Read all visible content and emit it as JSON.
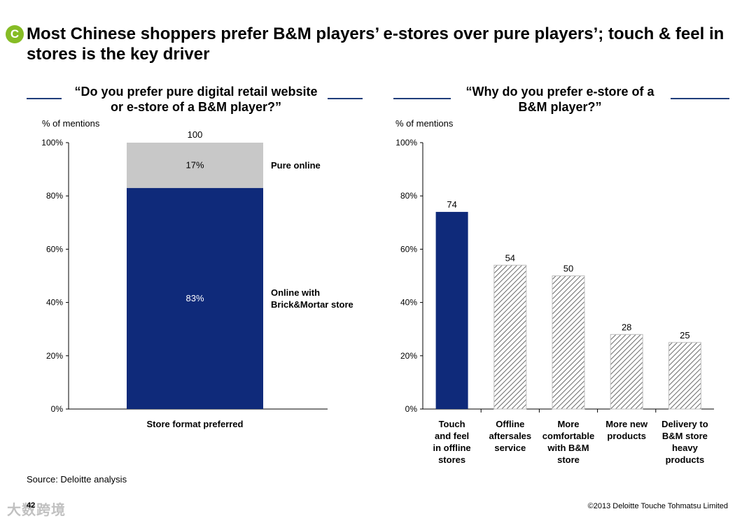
{
  "badge": "C",
  "title": "Most Chinese shoppers prefer B&M players’ e-stores over pure players’; touch & feel in stores is the key driver",
  "left_question": "“Do you prefer pure digital retail website or e-store of a B&M player?”",
  "right_question": "“Why do you prefer e-store of a B&M player?”",
  "unit_label": "% of mentions",
  "source": "Source: Deloitte analysis",
  "page_number": "42",
  "watermark": "大数跨境",
  "copyright": "©2013 Deloitte Touche Tohmatsu Limited",
  "colors": {
    "navy": "#0f2a7a",
    "gray": "#c8c8c8",
    "rule": "#1f3d7a",
    "badge": "#86bc25"
  },
  "chart_data": [
    {
      "type": "bar",
      "stacked": true,
      "categories": [
        "Store format preferred"
      ],
      "series": [
        {
          "name": "Online with Brick&Mortar store",
          "values": [
            83
          ],
          "label": "83%"
        },
        {
          "name": "Pure online",
          "values": [
            17
          ],
          "label": "17%"
        }
      ],
      "total_label": "100",
      "yticks": [
        "0%",
        "20%",
        "40%",
        "60%",
        "80%",
        "100%"
      ],
      "ylim": [
        0,
        100
      ]
    },
    {
      "type": "bar",
      "categories": [
        [
          "Touch",
          "and feel",
          "in offline",
          "stores"
        ],
        [
          "Offline",
          "aftersales",
          "service"
        ],
        [
          "More",
          "comfortable",
          "with B&M",
          "store"
        ],
        [
          "More new",
          "products"
        ],
        [
          "Delivery to",
          "B&M store",
          "heavy",
          "products"
        ]
      ],
      "values": [
        74,
        54,
        50,
        28,
        25
      ],
      "highlight_index": 0,
      "yticks": [
        "0%",
        "20%",
        "40%",
        "60%",
        "80%",
        "100%"
      ],
      "ylim": [
        0,
        100
      ]
    }
  ]
}
